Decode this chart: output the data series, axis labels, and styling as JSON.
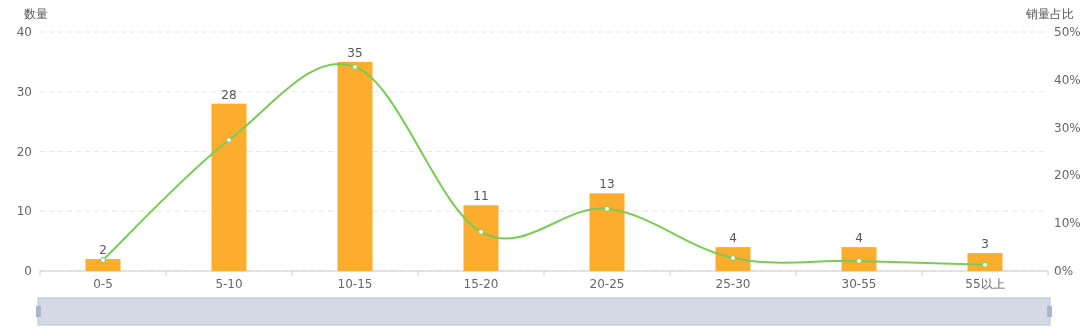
{
  "chart_data": {
    "type": "bar",
    "ylabel": "数量",
    "y2label": "销量占比",
    "categories": [
      "0-5",
      "5-10",
      "10-15",
      "15-20",
      "20-25",
      "25-30",
      "30-55",
      "55以上"
    ],
    "series": [
      {
        "color": "#fdad2e",
        "values": [
          2,
          28,
          35,
          11,
          13,
          4,
          4,
          3
        ],
        "value_labels": [
          "2",
          "28",
          "35",
          "11",
          "13",
          "4",
          "4",
          "3"
        ]
      },
      {
        "type": "line",
        "axis": "y2",
        "color": "#7acb56",
        "values": [
          2.3,
          27.4,
          42.7,
          8.2,
          13.0,
          2.7,
          2.1,
          1.3
        ]
      }
    ],
    "ylim": [
      0,
      40
    ],
    "yticks": [
      0,
      10,
      20,
      30,
      40
    ],
    "y2lim": [
      0,
      50
    ],
    "y2ticks": [
      {
        "value": 0,
        "label": "0%"
      },
      {
        "value": 10,
        "label": "10%"
      },
      {
        "value": 20,
        "label": "20%"
      },
      {
        "value": 30,
        "label": "30%"
      },
      {
        "value": 40,
        "label": "40%"
      },
      {
        "value": 50,
        "label": "50%"
      }
    ],
    "grid": "y",
    "marker": "circle"
  }
}
